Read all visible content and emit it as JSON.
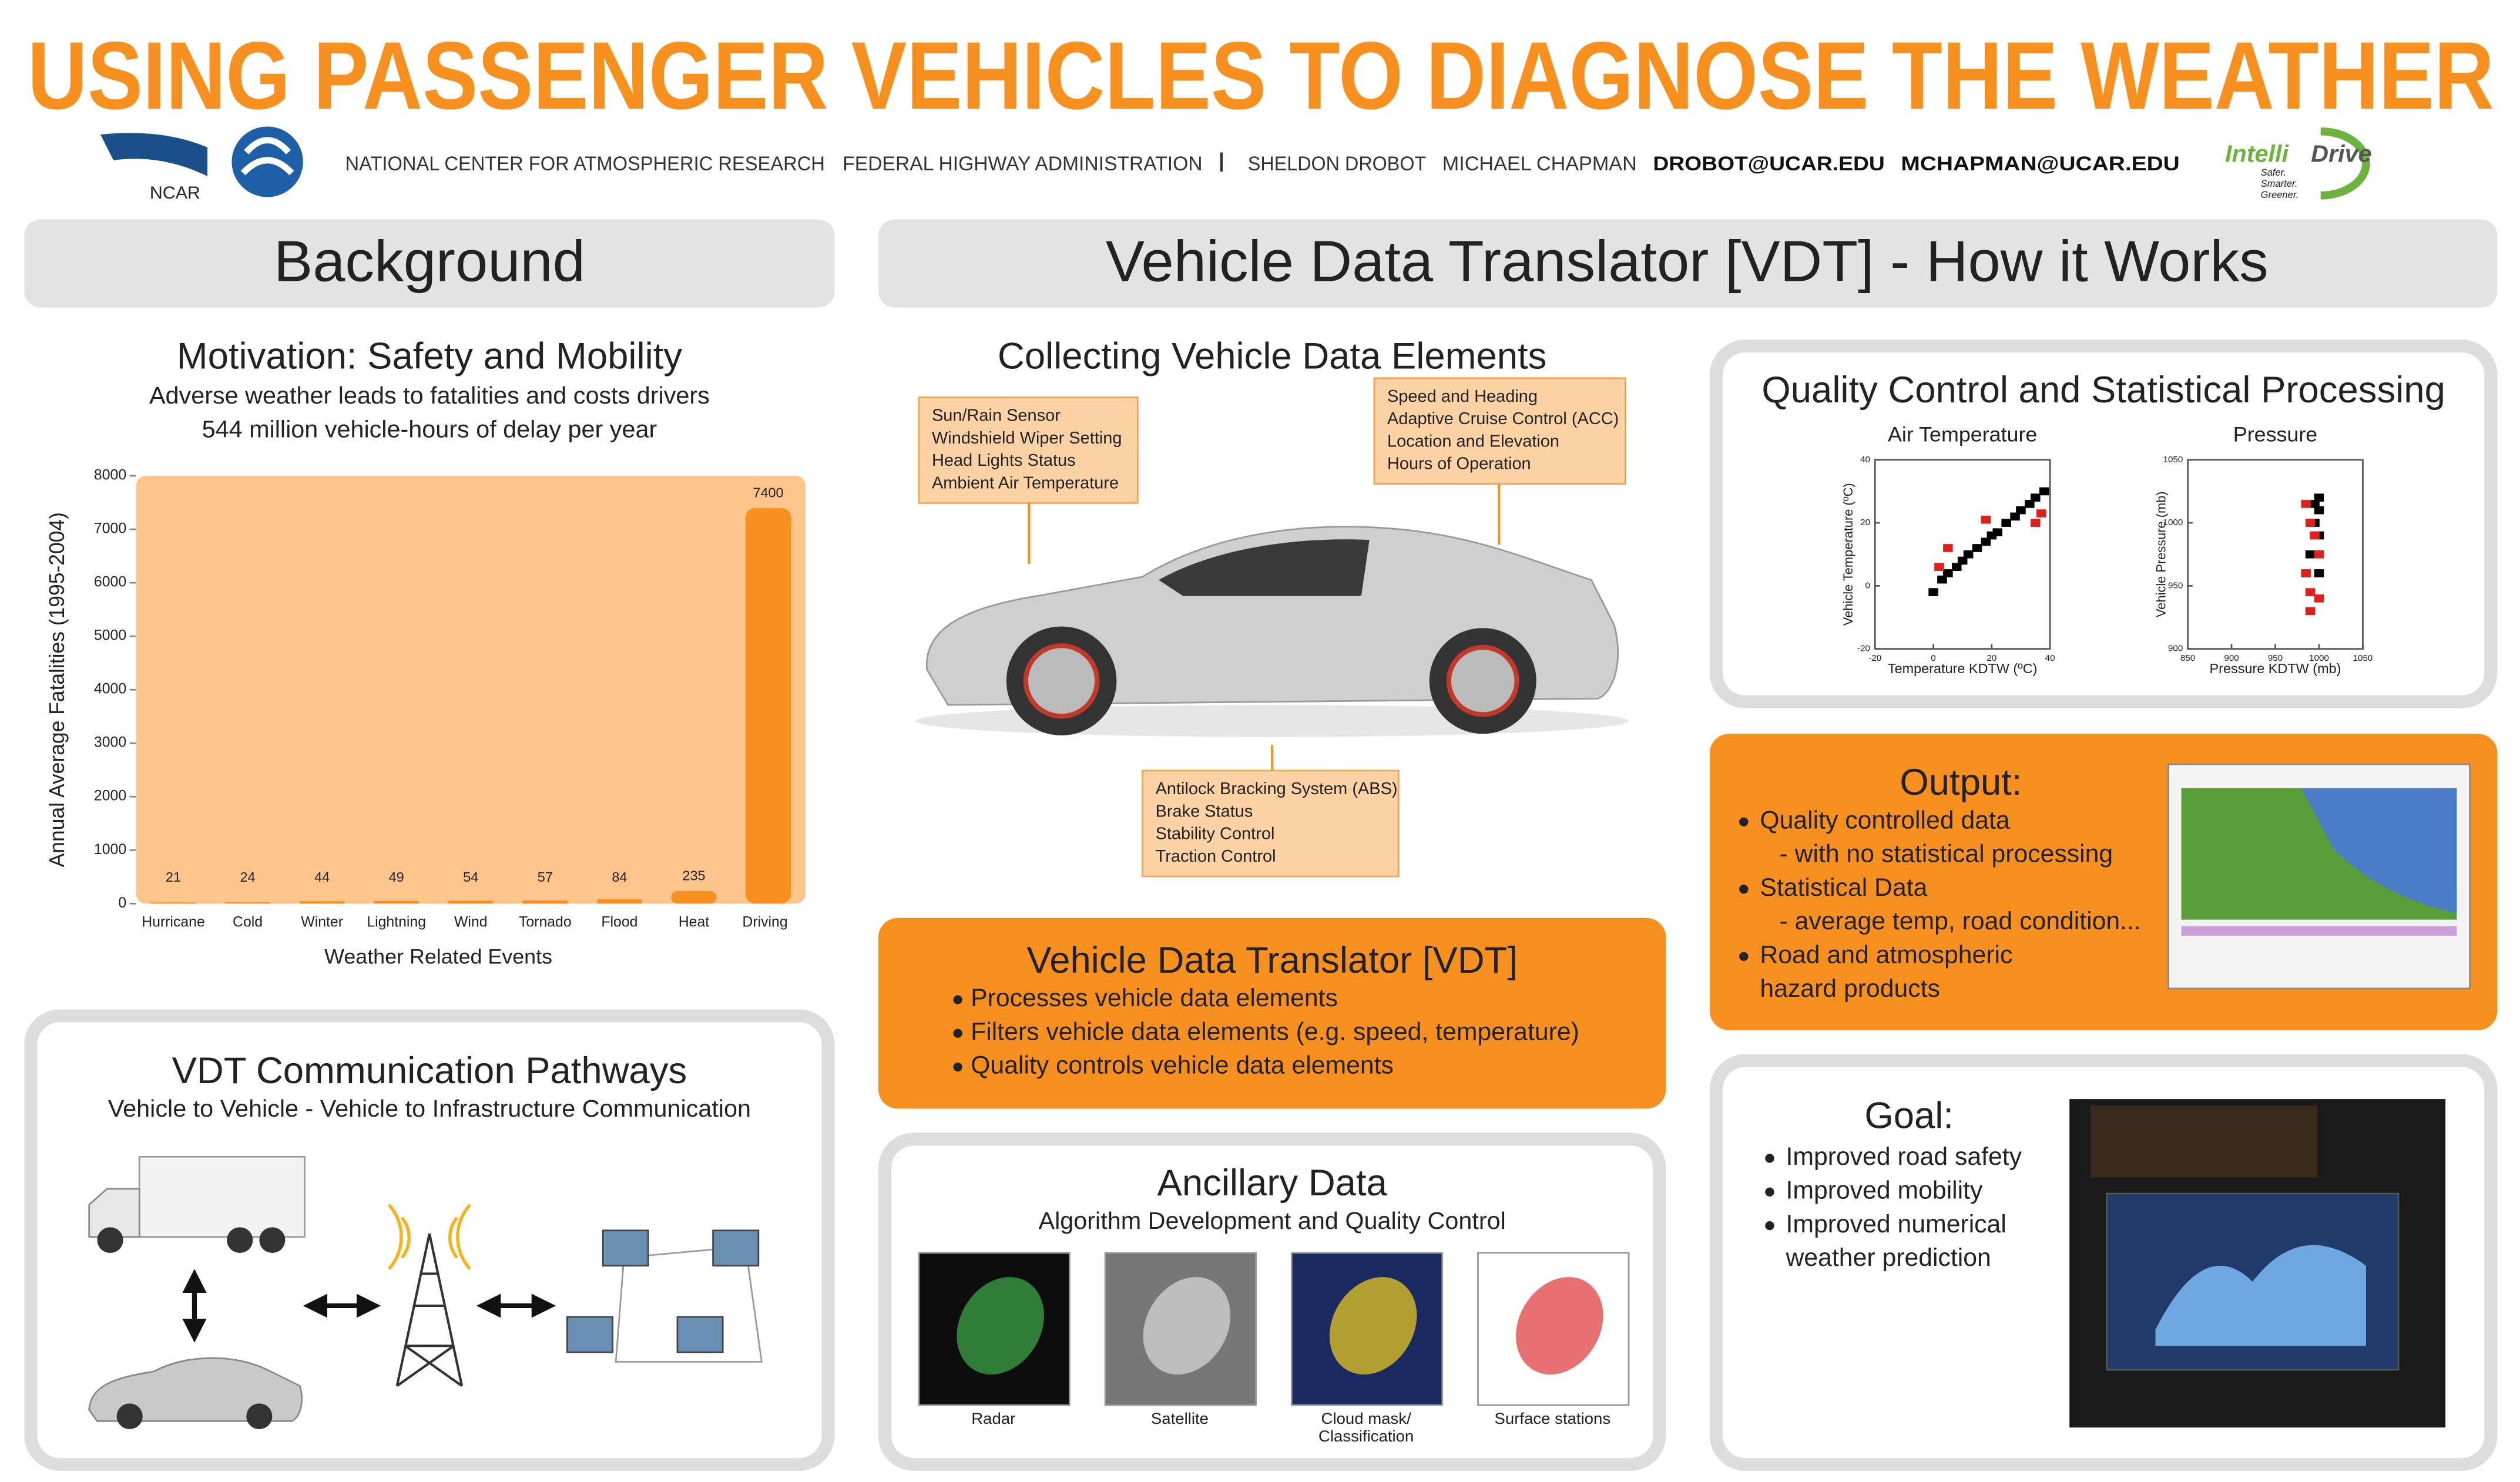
{
  "header": {
    "title": "USING PASSENGER VEHICLES TO DIAGNOSE THE WEATHER",
    "ncar_logo": "NCAR",
    "affiliations": [
      "NATIONAL CENTER FOR ATMOSPHERIC RESEARCH",
      "FEDERAL HIGHWAY ADMINISTRATION"
    ],
    "separator": "|",
    "authors": [
      "SHELDON DROBOT",
      "MICHAEL CHAPMAN"
    ],
    "emails": [
      "DROBOT@UCAR.EDU",
      "MCHAPMAN@UCAR.EDU"
    ],
    "intellidrive": [
      "Intelli",
      "Drive"
    ],
    "tagline": [
      "Safer.",
      "Smarter.",
      "Greener."
    ]
  },
  "background": {
    "heading": "Background",
    "title": "Motivation: Safety and Mobility",
    "lines": [
      "Adverse weather leads to fatalities and costs drivers",
      "544 million vehicle-hours of delay per year"
    ]
  },
  "chart_data": [
    {
      "type": "bar",
      "categories": [
        "Hurricane",
        "Cold",
        "Winter",
        "Lightning",
        "Wind",
        "Tornado",
        "Flood",
        "Heat",
        "Driving"
      ],
      "values": [
        21,
        24,
        44,
        49,
        54,
        57,
        84,
        235,
        7400
      ],
      "color": "#f7901e",
      "background_color": "#fdc58c",
      "xlabel": "Weather Related Events",
      "ylabel": "Annual Average Fatalities (1995-2004)",
      "ylim": [
        0,
        8000
      ],
      "yticks": [
        0,
        1000,
        2000,
        3000,
        4000,
        5000,
        6000,
        7000,
        8000
      ]
    },
    {
      "type": "scatter",
      "title": "Air Temperature",
      "xlabel": "Temperature KDTW (ºC)",
      "ylabel": "Vehicle Temperature (ºC)",
      "xlim": [
        -20,
        40
      ],
      "ylim": [
        -20,
        40
      ],
      "xticks": [
        -20,
        0,
        20,
        40
      ],
      "yticks": [
        -20,
        0,
        20,
        40
      ],
      "series": [
        {
          "color": "#000000",
          "x": [
            0,
            3,
            5,
            8,
            10,
            12,
            15,
            18,
            20,
            22,
            25,
            28,
            30,
            33,
            35,
            38
          ],
          "values": [
            -2,
            2,
            4,
            6,
            8,
            10,
            12,
            14,
            16,
            17,
            20,
            22,
            24,
            26,
            28,
            30
          ]
        },
        {
          "color": "#e0201b",
          "x": [
            5,
            18,
            35,
            37,
            2
          ],
          "values": [
            12,
            21,
            20,
            23,
            6
          ]
        }
      ]
    },
    {
      "type": "scatter",
      "title": "Pressure",
      "xlabel": "Pressure KDTW (mb)",
      "ylabel": "Vehicle Pressure (mb)",
      "xlim": [
        850,
        1050
      ],
      "ylim": [
        900,
        1050
      ],
      "xticks": [
        850,
        900,
        950,
        1000,
        1050
      ],
      "yticks": [
        900,
        950,
        1000,
        1050
      ],
      "series": [
        {
          "color": "#000000",
          "x": [
            1000,
            1000,
            995,
            1000,
            990,
            1000,
            995
          ],
          "values": [
            1020,
            1010,
            1000,
            990,
            975,
            960,
            1015
          ]
        },
        {
          "color": "#e0201b",
          "x": [
            985,
            990,
            995,
            1000,
            985,
            990,
            1000,
            990
          ],
          "values": [
            1015,
            1000,
            990,
            975,
            960,
            945,
            940,
            930
          ]
        }
      ]
    }
  ],
  "pathways": {
    "title": "VDT Communication Pathways",
    "subtitle": "Vehicle to Vehicle - Vehicle to Infrastructure Communication"
  },
  "vdt": {
    "heading": "Vehicle Data Translator [VDT] - How it Works",
    "collecting": {
      "title": "Collecting Vehicle Data Elements",
      "callouts": [
        [
          "Sun/Rain Sensor",
          "Windshield Wiper Setting",
          "Head Lights Status",
          "Ambient Air Temperature"
        ],
        [
          "Speed and Heading",
          "Adaptive Cruise Control (ACC)",
          "Location and Elevation",
          "Hours of Operation"
        ],
        [
          "Antilock Bracking System (ABS)",
          "Brake Status",
          "Stability Control",
          "Traction Control"
        ]
      ]
    },
    "translator": {
      "title": "Vehicle Data Translator [VDT]",
      "bullets": [
        "Processes vehicle data elements",
        "Filters vehicle data elements (e.g. speed, temperature)",
        "Quality controls vehicle data elements"
      ]
    },
    "ancillary": {
      "title": "Ancillary Data",
      "subtitle": "Algorithm Development and Quality Control",
      "images": [
        [
          "Radar"
        ],
        [
          "Satellite"
        ],
        [
          "Cloud mask/",
          "Classification"
        ],
        [
          "Surface stations"
        ]
      ]
    }
  },
  "qc": {
    "title": "Quality Control and Statistical Processing"
  },
  "output": {
    "title": "Output:",
    "lines": [
      {
        "text": "Quality controlled data",
        "bullet": true
      },
      {
        "text": "- with no statistical processing",
        "bullet": false
      },
      {
        "text": "Statistical Data",
        "bullet": true
      },
      {
        "text": "- average temp, road condition...",
        "bullet": false
      },
      {
        "text": "Road and atmospheric",
        "bullet": true
      },
      {
        "text": "hazard products",
        "bullet": false
      }
    ]
  },
  "goal": {
    "title": "Goal:",
    "lines": [
      {
        "text": "Improved road safety",
        "bullet": true
      },
      {
        "text": "Improved mobility",
        "bullet": true
      },
      {
        "text": "Improved numerical",
        "bullet": true
      },
      {
        "text": "weather prediction",
        "bullet": false
      }
    ]
  }
}
